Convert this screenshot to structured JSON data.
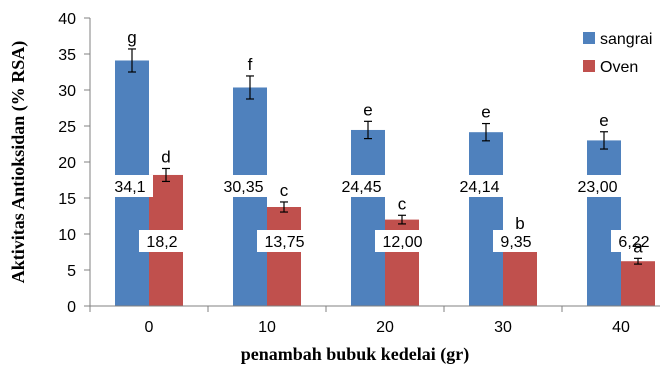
{
  "chart_data": {
    "type": "bar",
    "xlabel": "penambah bubuk kedelai (gr)",
    "ylabel": "Aktivitas Antioksidan (% RSA)",
    "ylim": [
      0,
      40
    ],
    "y_ticks": [
      "0",
      "5",
      "10",
      "15",
      "20",
      "25",
      "30",
      "35",
      "40"
    ],
    "categories": [
      "0",
      "10",
      "20",
      "30",
      "40"
    ],
    "legend_position": "top-right",
    "grid": false,
    "series": [
      {
        "name": "sangrai",
        "color": "#4F81BD",
        "values": [
          34.1,
          30.35,
          24.45,
          24.14,
          23.0
        ],
        "errors": [
          1.6,
          1.6,
          1.2,
          1.2,
          1.2
        ],
        "data_labels": [
          "34,1",
          "30,35",
          "24,45",
          "24,14",
          "23,00"
        ],
        "significance": [
          "g",
          "f",
          "e",
          "e",
          "e"
        ]
      },
      {
        "name": "Oven",
        "color": "#C0504D",
        "values": [
          18.2,
          13.75,
          12.0,
          9.35,
          6.22
        ],
        "errors": [
          0.9,
          0.7,
          0.6,
          0.5,
          0.4
        ],
        "data_labels": [
          "18,2",
          "13,75",
          "12,00",
          "9,35",
          "6,22"
        ],
        "significance": [
          "d",
          "c",
          "c",
          "b",
          "a"
        ]
      }
    ]
  }
}
